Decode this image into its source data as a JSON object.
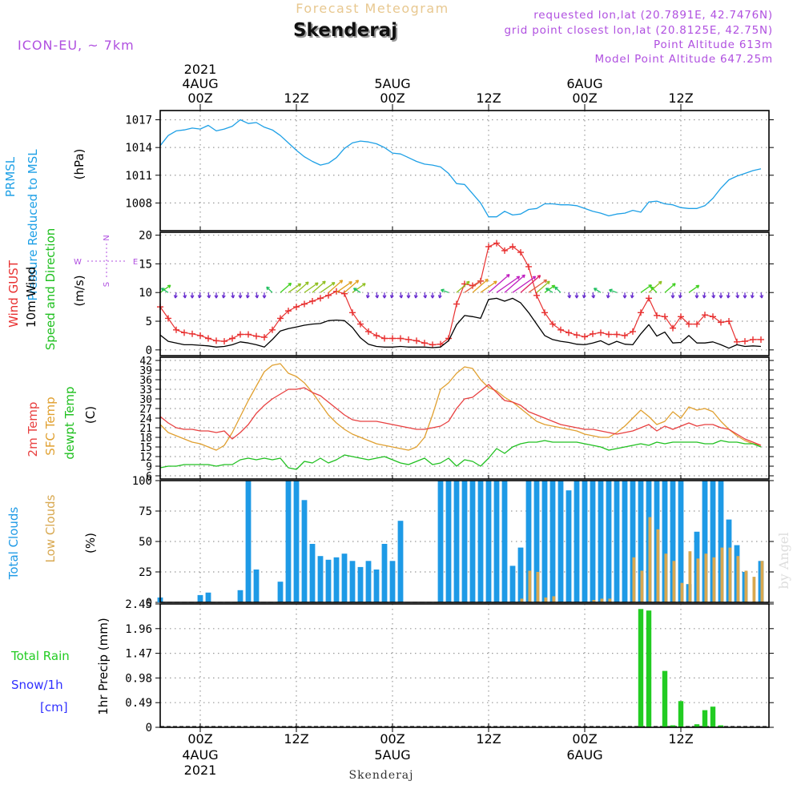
{
  "header": {
    "subtitle": "Forecast Meteogram",
    "location": "Skenderaj",
    "model": "ICON-EU, ~ 7km",
    "requested": "requested lon,lat (20.7891E, 42.7476N)",
    "gridpoint": "grid point closest lon,lat (20.8125E, 42.75N)",
    "point_alt": "Point Altitude 613m",
    "model_alt": "Model Point Altitude 647.25m"
  },
  "footer": {
    "location": "Skenderaj",
    "watermark": "by Angel"
  },
  "time_axis": {
    "year_label": "2021",
    "ticks": [
      {
        "hour": 0,
        "label": "00Z",
        "date": "4AUG"
      },
      {
        "hour": 12,
        "label": "12Z",
        "date": ""
      },
      {
        "hour": 24,
        "label": "00Z",
        "date": "5AUG"
      },
      {
        "hour": 36,
        "label": "12Z",
        "date": ""
      },
      {
        "hour": 48,
        "label": "00Z",
        "date": "6AUG"
      },
      {
        "hour": 60,
        "label": "12Z",
        "date": ""
      }
    ],
    "range_hours": [
      -5,
      71
    ]
  },
  "colors": {
    "pressure": "#1ea0e6",
    "gust": "#e83030",
    "wind": "#000000",
    "temp": "#e84040",
    "sfc": "#e0a030",
    "dewpt": "#20c020",
    "total_clouds": "#1e9ae6",
    "low_clouds": "#d8a850",
    "rain": "#22cc22",
    "snow": "#3030ff",
    "label_purple": "#b050e0",
    "wind_arrow_purple": "#6a2fd0",
    "grid": "#999999"
  },
  "chart_data": [
    {
      "type": "line",
      "title": "PRMSL Pressure Reduced to MSL",
      "label_lines": [
        "PRMSL",
        "Pressure Reduced to MSL"
      ],
      "unit": "(hPa)",
      "ylim": [
        1005,
        1018
      ],
      "yticks": [
        "1008",
        "1011",
        "1014",
        "1017"
      ],
      "ytick_values": [
        1008,
        1011,
        1014,
        1017
      ],
      "x": [
        -5,
        -4,
        -3,
        -2,
        -1,
        0,
        1,
        2,
        3,
        4,
        5,
        6,
        7,
        8,
        9,
        10,
        11,
        12,
        13,
        14,
        15,
        16,
        17,
        18,
        19,
        20,
        21,
        22,
        23,
        24,
        25,
        26,
        27,
        28,
        29,
        30,
        31,
        32,
        33,
        34,
        35,
        36,
        37,
        38,
        39,
        40,
        41,
        42,
        43,
        44,
        45,
        46,
        47,
        48,
        49,
        50,
        51,
        52,
        53,
        54,
        55,
        56,
        57,
        58,
        59,
        60,
        61,
        62,
        63,
        64,
        65,
        66,
        67,
        68,
        69,
        70
      ],
      "y": [
        1014.2,
        1015.3,
        1015.8,
        1015.9,
        1016.1,
        1016.0,
        1016.4,
        1015.8,
        1016.0,
        1016.3,
        1017.0,
        1016.6,
        1016.7,
        1016.2,
        1015.9,
        1015.3,
        1014.5,
        1013.7,
        1013.0,
        1012.5,
        1012.1,
        1012.3,
        1012.9,
        1013.9,
        1014.5,
        1014.7,
        1014.6,
        1014.4,
        1014.0,
        1013.4,
        1013.3,
        1012.9,
        1012.5,
        1012.2,
        1012.1,
        1011.9,
        1011.2,
        1010.1,
        1010.0,
        1009.0,
        1008.0,
        1006.5,
        1006.5,
        1007.1,
        1006.7,
        1006.8,
        1007.3,
        1007.4,
        1007.9,
        1007.9,
        1007.8,
        1007.8,
        1007.7,
        1007.4,
        1007.1,
        1006.9,
        1006.6,
        1006.8,
        1006.9,
        1007.2,
        1007.0,
        1008.1,
        1008.2,
        1007.9,
        1007.8,
        1007.5,
        1007.4,
        1007.4,
        1007.7,
        1008.5,
        1009.6,
        1010.5,
        1010.9,
        1011.2,
        1011.5,
        1011.7
      ]
    },
    {
      "type": "line",
      "title": "Wind GUST / 10m Wind Speed and Direction",
      "label_lines": [
        "Wind GUST",
        "10m Wind",
        "Speed and Direction"
      ],
      "unit": "(m/s)",
      "compass": {
        "n": "N",
        "s": "S",
        "e": "E",
        "w": "W"
      },
      "ylim": [
        -1,
        20.5
      ],
      "yticks": [
        "0",
        "5",
        "10",
        "15",
        "20"
      ],
      "ytick_values": [
        0,
        5,
        10,
        15,
        20
      ],
      "x": [
        -5,
        -4,
        -3,
        -2,
        -1,
        0,
        1,
        2,
        3,
        4,
        5,
        6,
        7,
        8,
        9,
        10,
        11,
        12,
        13,
        14,
        15,
        16,
        17,
        18,
        19,
        20,
        21,
        22,
        23,
        24,
        25,
        26,
        27,
        28,
        29,
        30,
        31,
        32,
        33,
        34,
        35,
        36,
        37,
        38,
        39,
        40,
        41,
        42,
        43,
        44,
        45,
        46,
        47,
        48,
        49,
        50,
        51,
        52,
        53,
        54,
        55,
        56,
        57,
        58,
        59,
        60,
        61,
        62,
        63,
        64,
        65,
        66,
        67,
        68,
        69,
        70
      ],
      "series": [
        {
          "name": "Wind GUST",
          "values": [
            7.5,
            5.5,
            3.5,
            3.0,
            2.8,
            2.5,
            2.0,
            1.6,
            1.5,
            2.0,
            2.7,
            2.7,
            2.4,
            2.2,
            3.5,
            5.5,
            6.8,
            7.5,
            8.0,
            8.5,
            9.0,
            9.5,
            10.2,
            9.8,
            6.5,
            4.5,
            3.2,
            2.5,
            2.0,
            2.0,
            2.0,
            1.8,
            1.6,
            1.2,
            0.9,
            1.0,
            2.0,
            8.0,
            11.5,
            11.2,
            12.0,
            18.0,
            18.6,
            17.3,
            18.0,
            17.0,
            14.5,
            9.5,
            6.5,
            4.5,
            3.5,
            3.0,
            2.6,
            2.3,
            2.8,
            3.0,
            2.7,
            2.7,
            2.5,
            3.2,
            6.5,
            9.0,
            6.0,
            5.8,
            3.8,
            5.8,
            4.5,
            4.5,
            6.1,
            5.8,
            4.8,
            5.0,
            1.4,
            1.5,
            1.8,
            1.8
          ]
        },
        {
          "name": "10m Wind",
          "values": [
            2.6,
            1.5,
            1.2,
            0.9,
            0.9,
            0.8,
            0.7,
            0.5,
            0.6,
            0.9,
            1.4,
            1.2,
            0.9,
            0.5,
            1.8,
            3.3,
            3.7,
            4.0,
            4.3,
            4.5,
            4.6,
            5.1,
            5.2,
            5.1,
            3.9,
            2.1,
            1.0,
            0.6,
            0.5,
            0.5,
            0.6,
            0.5,
            0.5,
            0.5,
            0.4,
            0.5,
            1.6,
            4.4,
            6.0,
            5.8,
            5.5,
            8.8,
            9.0,
            8.5,
            9.0,
            8.2,
            6.5,
            4.5,
            2.5,
            1.8,
            1.5,
            1.3,
            1.0,
            0.9,
            1.2,
            1.6,
            0.9,
            1.5,
            1.0,
            0.9,
            2.8,
            4.4,
            2.4,
            3.1,
            1.2,
            1.3,
            2.5,
            1.2,
            1.2,
            1.4,
            0.9,
            0.3,
            0.9,
            0.6,
            0.7,
            0.6
          ]
        }
      ]
    },
    {
      "type": "line",
      "title": "2m Temp / SFC Temp / dewpt Temp",
      "label_lines": [
        "2m Temp",
        "SFC Temp",
        "dewpt Temp"
      ],
      "unit": "(C)",
      "ylim": [
        5,
        43
      ],
      "yticks": [
        "6",
        "9",
        "12",
        "15",
        "18",
        "21",
        "24",
        "27",
        "30",
        "33",
        "36",
        "39",
        "42"
      ],
      "ytick_values": [
        6,
        9,
        12,
        15,
        18,
        21,
        24,
        27,
        30,
        33,
        36,
        39,
        42
      ],
      "x": [
        -5,
        -4,
        -3,
        -2,
        -1,
        0,
        1,
        2,
        3,
        4,
        5,
        6,
        7,
        8,
        9,
        10,
        11,
        12,
        13,
        14,
        15,
        16,
        17,
        18,
        19,
        20,
        21,
        22,
        23,
        24,
        25,
        26,
        27,
        28,
        29,
        30,
        31,
        32,
        33,
        34,
        35,
        36,
        37,
        38,
        39,
        40,
        41,
        42,
        43,
        44,
        45,
        46,
        47,
        48,
        49,
        50,
        51,
        52,
        53,
        54,
        55,
        56,
        57,
        58,
        59,
        60,
        61,
        62,
        63,
        64,
        65,
        66,
        67,
        68,
        69,
        70
      ],
      "series": [
        {
          "name": "2m Temp",
          "values": [
            24.5,
            22.5,
            21.0,
            20.5,
            20.5,
            20.0,
            20.0,
            19.5,
            20.0,
            17.5,
            19.5,
            22.0,
            25.5,
            28.0,
            30.0,
            31.5,
            33.0,
            33.0,
            33.5,
            32.0,
            31.0,
            29.0,
            27.0,
            25.0,
            23.5,
            23.0,
            23.0,
            23.0,
            22.5,
            22.0,
            21.5,
            21.0,
            20.5,
            20.5,
            21.0,
            21.5,
            23.0,
            27.0,
            30.0,
            30.5,
            32.5,
            34.5,
            32.0,
            29.5,
            29.0,
            28.0,
            26.0,
            25.0,
            24.0,
            23.0,
            22.0,
            21.5,
            21.0,
            20.5,
            20.5,
            20.0,
            19.5,
            19.0,
            19.5,
            20.0,
            21.0,
            22.0,
            20.0,
            21.5,
            20.5,
            21.5,
            22.5,
            21.5,
            22.0,
            22.0,
            21.0,
            20.5,
            19.0,
            17.5,
            16.5,
            15.5
          ]
        },
        {
          "name": "SFC Temp",
          "values": [
            22.0,
            19.5,
            18.5,
            17.5,
            16.5,
            16.0,
            15.0,
            14.0,
            15.5,
            19.5,
            24.5,
            29.5,
            34.0,
            38.5,
            40.5,
            41.0,
            38.0,
            37.0,
            35.0,
            32.0,
            28.5,
            25.0,
            22.5,
            20.5,
            19.0,
            18.0,
            17.0,
            16.0,
            15.5,
            15.0,
            14.5,
            14.0,
            15.0,
            18.0,
            25.0,
            33.0,
            35.0,
            38.0,
            40.0,
            39.5,
            36.0,
            33.5,
            32.5,
            30.5,
            29.0,
            27.0,
            25.0,
            23.0,
            22.0,
            21.5,
            21.0,
            20.5,
            20.0,
            19.0,
            18.5,
            18.0,
            18.0,
            19.5,
            21.5,
            24.0,
            26.5,
            24.5,
            22.0,
            23.0,
            26.0,
            24.0,
            27.5,
            26.5,
            27.0,
            26.0,
            23.0,
            20.5,
            18.5,
            17.0,
            16.0,
            15.5
          ]
        },
        {
          "name": "dewpt Temp",
          "values": [
            8.5,
            9.0,
            9.0,
            9.5,
            9.5,
            9.5,
            9.5,
            9.0,
            9.5,
            9.5,
            11.0,
            11.5,
            11.0,
            11.5,
            11.0,
            11.5,
            8.5,
            8.0,
            10.5,
            10.0,
            11.5,
            10.0,
            11.0,
            12.5,
            12.0,
            11.5,
            11.0,
            11.5,
            12.0,
            11.0,
            10.0,
            9.5,
            10.5,
            11.5,
            9.5,
            10.0,
            11.5,
            9.0,
            11.0,
            10.5,
            9.0,
            11.5,
            14.5,
            13.0,
            15.0,
            16.0,
            16.5,
            16.5,
            17.0,
            16.5,
            16.5,
            16.5,
            16.5,
            16.0,
            15.5,
            15.0,
            14.0,
            14.5,
            15.0,
            15.5,
            16.0,
            15.5,
            16.5,
            16.0,
            16.5,
            16.5,
            16.5,
            16.5,
            16.0,
            16.0,
            17.0,
            16.5,
            16.5,
            16.0,
            16.0,
            15.0
          ]
        }
      ]
    },
    {
      "type": "bar",
      "title": "Total Clouds / Low Clouds",
      "label_lines": [
        "Total Clouds",
        "Low Clouds"
      ],
      "unit": "(%)",
      "ylim": [
        0,
        100
      ],
      "yticks": [
        "0",
        "25",
        "50",
        "75",
        "100"
      ],
      "ytick_values": [
        0,
        25,
        50,
        75,
        100
      ],
      "x": [
        -5,
        -4,
        -3,
        -2,
        -1,
        0,
        1,
        2,
        3,
        4,
        5,
        6,
        7,
        8,
        9,
        10,
        11,
        12,
        13,
        14,
        15,
        16,
        17,
        18,
        19,
        20,
        21,
        22,
        23,
        24,
        25,
        26,
        27,
        28,
        29,
        30,
        31,
        32,
        33,
        34,
        35,
        36,
        37,
        38,
        39,
        40,
        41,
        42,
        43,
        44,
        45,
        46,
        47,
        48,
        49,
        50,
        51,
        52,
        53,
        54,
        55,
        56,
        57,
        58,
        59,
        60,
        61,
        62,
        63,
        64,
        65,
        66,
        67,
        68,
        69,
        70
      ],
      "series": [
        {
          "name": "Total Clouds",
          "values": [
            4,
            0,
            0,
            0,
            0,
            6,
            8,
            0,
            0,
            0,
            10,
            100,
            27,
            0,
            0,
            17,
            100,
            100,
            84,
            48,
            38,
            35,
            37,
            40,
            34,
            29,
            34,
            27,
            48,
            34,
            67,
            0,
            0,
            0,
            0,
            100,
            100,
            100,
            100,
            100,
            100,
            100,
            100,
            100,
            30,
            45,
            100,
            100,
            100,
            100,
            100,
            92,
            100,
            100,
            100,
            100,
            100,
            100,
            100,
            100,
            100,
            100,
            100,
            100,
            100,
            100,
            15,
            58,
            100,
            100,
            100,
            68,
            47,
            25,
            0,
            34
          ]
        },
        {
          "name": "Low Clouds",
          "values": [
            0,
            0,
            0,
            0,
            0,
            0,
            0,
            0,
            0,
            0,
            0,
            0,
            0,
            0,
            0,
            0,
            0,
            0,
            0,
            0,
            0,
            0,
            0,
            0,
            0,
            0,
            0,
            0,
            0,
            0,
            0,
            0,
            0,
            0,
            0,
            0,
            0,
            0,
            0,
            0,
            0,
            0,
            0,
            0,
            0,
            3,
            26,
            25,
            4,
            5,
            0,
            0,
            0,
            0,
            2,
            3,
            3,
            0,
            0,
            37,
            26,
            70,
            60,
            40,
            34,
            16,
            42,
            36,
            40,
            37,
            45,
            45,
            38,
            26,
            21,
            34
          ]
        }
      ]
    },
    {
      "type": "bar",
      "title": "Total Rain / Snow/1h [cm]",
      "label_lines": [
        "Total  Rain",
        "Snow/1h",
        "[cm]"
      ],
      "unit": "1hr Precip (mm)",
      "ylim": [
        0,
        2.45
      ],
      "yticks": [
        "0",
        "0.49",
        "0.98",
        "1.47",
        "1.96",
        "2.45"
      ],
      "ytick_values": [
        0,
        0.49,
        0.98,
        1.47,
        1.96,
        2.45
      ],
      "x": [
        55,
        56,
        58,
        59,
        60,
        62,
        63,
        64,
        65,
        66
      ],
      "series": [
        {
          "name": "Total Rain",
          "values": [
            2.35,
            2.32,
            1.12,
            0.04,
            0.52,
            0.06,
            0.34,
            0.41,
            0.04,
            0.0
          ]
        }
      ]
    }
  ]
}
